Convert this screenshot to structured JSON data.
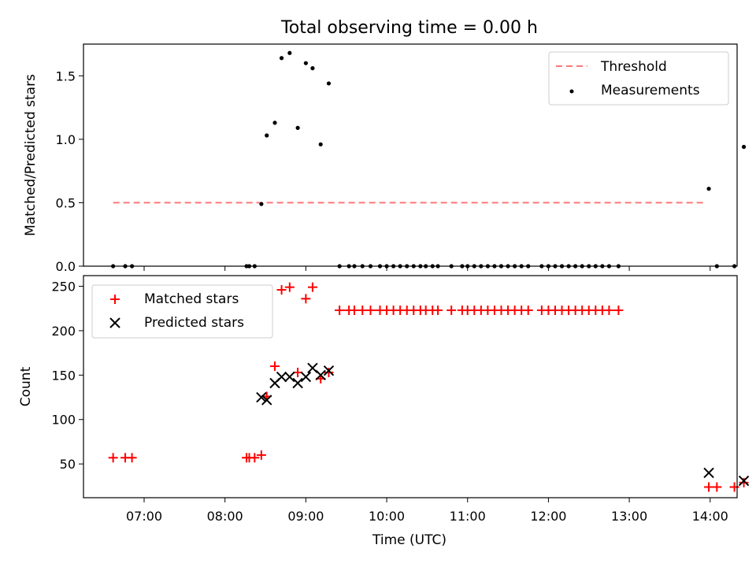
{
  "figure": {
    "title": "Total observing time = 0.00 h",
    "xlabel": "Time (UTC)",
    "x_ticks": [
      "07:00",
      "08:00",
      "09:00",
      "10:00",
      "11:00",
      "12:00",
      "13:00",
      "14:00"
    ]
  },
  "colors": {
    "threshold": "#ff7777",
    "measurements": "#000000",
    "matched": "#ff0000",
    "predicted": "#000000"
  },
  "chart_data": [
    {
      "type": "scatter",
      "ylabel": "Matched/Predicted stars",
      "ylim": [
        0,
        1.75
      ],
      "y_ticks": [
        "0.0",
        "0.5",
        "1.0",
        "1.5"
      ],
      "legend_placement": "top-right",
      "series": [
        {
          "name": "Threshold",
          "kind": "line",
          "x": [
            "06:37",
            "13:57"
          ],
          "y": [
            0.5,
            0.5
          ]
        },
        {
          "name": "Measurements",
          "kind": "points",
          "x": [
            "06:37",
            "06:46",
            "06:51",
            "08:16",
            "08:18",
            "08:22",
            "08:27",
            "08:31",
            "08:37",
            "08:42",
            "08:48",
            "08:54",
            "09:00",
            "09:05",
            "09:11",
            "09:17",
            "09:25",
            "09:32",
            "09:36",
            "09:42",
            "09:48",
            "09:55",
            "10:00",
            "10:05",
            "10:10",
            "10:15",
            "10:20",
            "10:25",
            "10:29",
            "10:34",
            "10:38",
            "10:48",
            "10:56",
            "11:00",
            "11:05",
            "11:10",
            "11:15",
            "11:20",
            "11:25",
            "11:30",
            "11:35",
            "11:40",
            "11:45",
            "11:55",
            "12:00",
            "12:05",
            "12:10",
            "12:15",
            "12:20",
            "12:25",
            "12:30",
            "12:35",
            "12:40",
            "12:45",
            "12:52",
            "13:59",
            "14:05",
            "14:18",
            "14:25"
          ],
          "y": [
            0.0,
            0.0,
            0.0,
            0.0,
            0.0,
            0.0,
            0.49,
            1.03,
            1.13,
            1.64,
            1.68,
            1.09,
            1.6,
            1.56,
            0.96,
            1.44,
            0.0,
            0.0,
            0.0,
            0.0,
            0.0,
            0.0,
            0.0,
            0.0,
            0.0,
            0.0,
            0.0,
            0.0,
            0.0,
            0.0,
            0.0,
            0.0,
            0.0,
            0.0,
            0.0,
            0.0,
            0.0,
            0.0,
            0.0,
            0.0,
            0.0,
            0.0,
            0.0,
            0.0,
            0.0,
            0.0,
            0.0,
            0.0,
            0.0,
            0.0,
            0.0,
            0.0,
            0.0,
            0.0,
            0.0,
            0.61,
            0.0,
            0.0,
            0.94
          ]
        }
      ]
    },
    {
      "type": "scatter",
      "ylabel": "Count",
      "ylim": [
        12,
        262
      ],
      "y_ticks": [
        "50",
        "100",
        "150",
        "200",
        "250"
      ],
      "legend_placement": "top-left",
      "series": [
        {
          "name": "Matched stars",
          "kind": "plus",
          "x": [
            "06:37",
            "06:46",
            "06:51",
            "08:16",
            "08:18",
            "08:22",
            "08:27",
            "08:31",
            "08:37",
            "08:42",
            "08:48",
            "08:54",
            "09:00",
            "09:05",
            "09:11",
            "09:17",
            "09:25",
            "09:32",
            "09:36",
            "09:42",
            "09:48",
            "09:55",
            "10:00",
            "10:05",
            "10:10",
            "10:15",
            "10:20",
            "10:25",
            "10:29",
            "10:34",
            "10:38",
            "10:48",
            "10:56",
            "11:00",
            "11:05",
            "11:10",
            "11:15",
            "11:20",
            "11:25",
            "11:30",
            "11:35",
            "11:40",
            "11:45",
            "11:55",
            "12:00",
            "12:05",
            "12:10",
            "12:15",
            "12:20",
            "12:25",
            "12:30",
            "12:35",
            "12:40",
            "12:45",
            "12:52",
            "13:59",
            "14:05",
            "14:18",
            "14:25"
          ],
          "y": [
            57,
            57,
            57,
            57,
            57,
            57,
            60,
            126,
            160,
            246,
            249,
            153,
            236,
            249,
            146,
            153,
            223,
            223,
            223,
            223,
            223,
            223,
            223,
            223,
            223,
            223,
            223,
            223,
            223,
            223,
            223,
            223,
            223,
            223,
            223,
            223,
            223,
            223,
            223,
            223,
            223,
            223,
            223,
            223,
            223,
            223,
            223,
            223,
            223,
            223,
            223,
            223,
            223,
            223,
            223,
            24,
            24,
            24,
            29
          ]
        },
        {
          "name": "Predicted stars",
          "kind": "cross",
          "x": [
            "08:27",
            "08:31",
            "08:37",
            "08:42",
            "08:48",
            "08:54",
            "09:00",
            "09:05",
            "09:11",
            "09:17",
            "13:59",
            "14:25"
          ],
          "y": [
            125,
            122,
            141,
            148,
            148,
            141,
            148,
            158,
            150,
            155,
            40,
            31
          ]
        }
      ]
    }
  ]
}
